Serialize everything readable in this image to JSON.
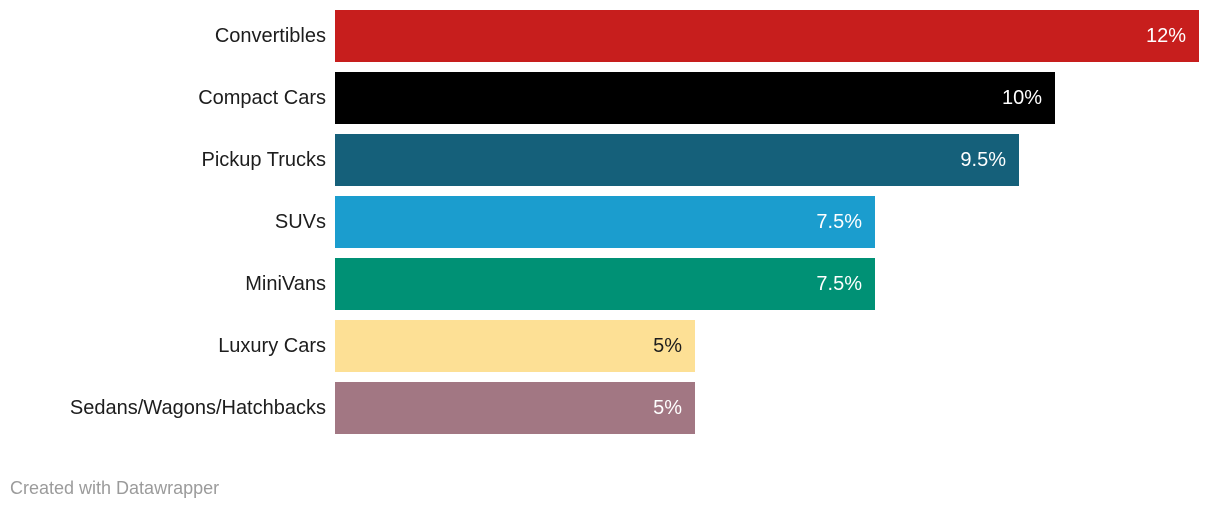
{
  "chart_data": {
    "type": "bar",
    "orientation": "horizontal",
    "categories": [
      "Convertibles",
      "Compact Cars",
      "Pickup Trucks",
      "SUVs",
      "MiniVans",
      "Luxury Cars",
      "Sedans/Wagons/Hatchbacks"
    ],
    "values": [
      12,
      10,
      9.5,
      7.5,
      7.5,
      5,
      5
    ],
    "value_labels": [
      "12%",
      "10%",
      "9.5%",
      "7.5%",
      "7.5%",
      "5%",
      "5%"
    ],
    "bar_colors": [
      "#c71e1d",
      "#000000",
      "#15607a",
      "#1b9dce",
      "#009175",
      "#fde095",
      "#a27783"
    ],
    "value_label_colors": [
      "#ffffff",
      "#ffffff",
      "#ffffff",
      "#ffffff",
      "#ffffff",
      "#1d1d1d",
      "#ffffff"
    ],
    "title": "",
    "xlabel": "",
    "ylabel": "",
    "xlim": [
      0,
      12
    ],
    "grid": false,
    "legend": false
  },
  "footer": {
    "credit": "Created with Datawrapper"
  },
  "colors": {
    "background": "#ffffff",
    "category_label": "#1d1d1d",
    "credit_text": "#9b9b9b"
  }
}
